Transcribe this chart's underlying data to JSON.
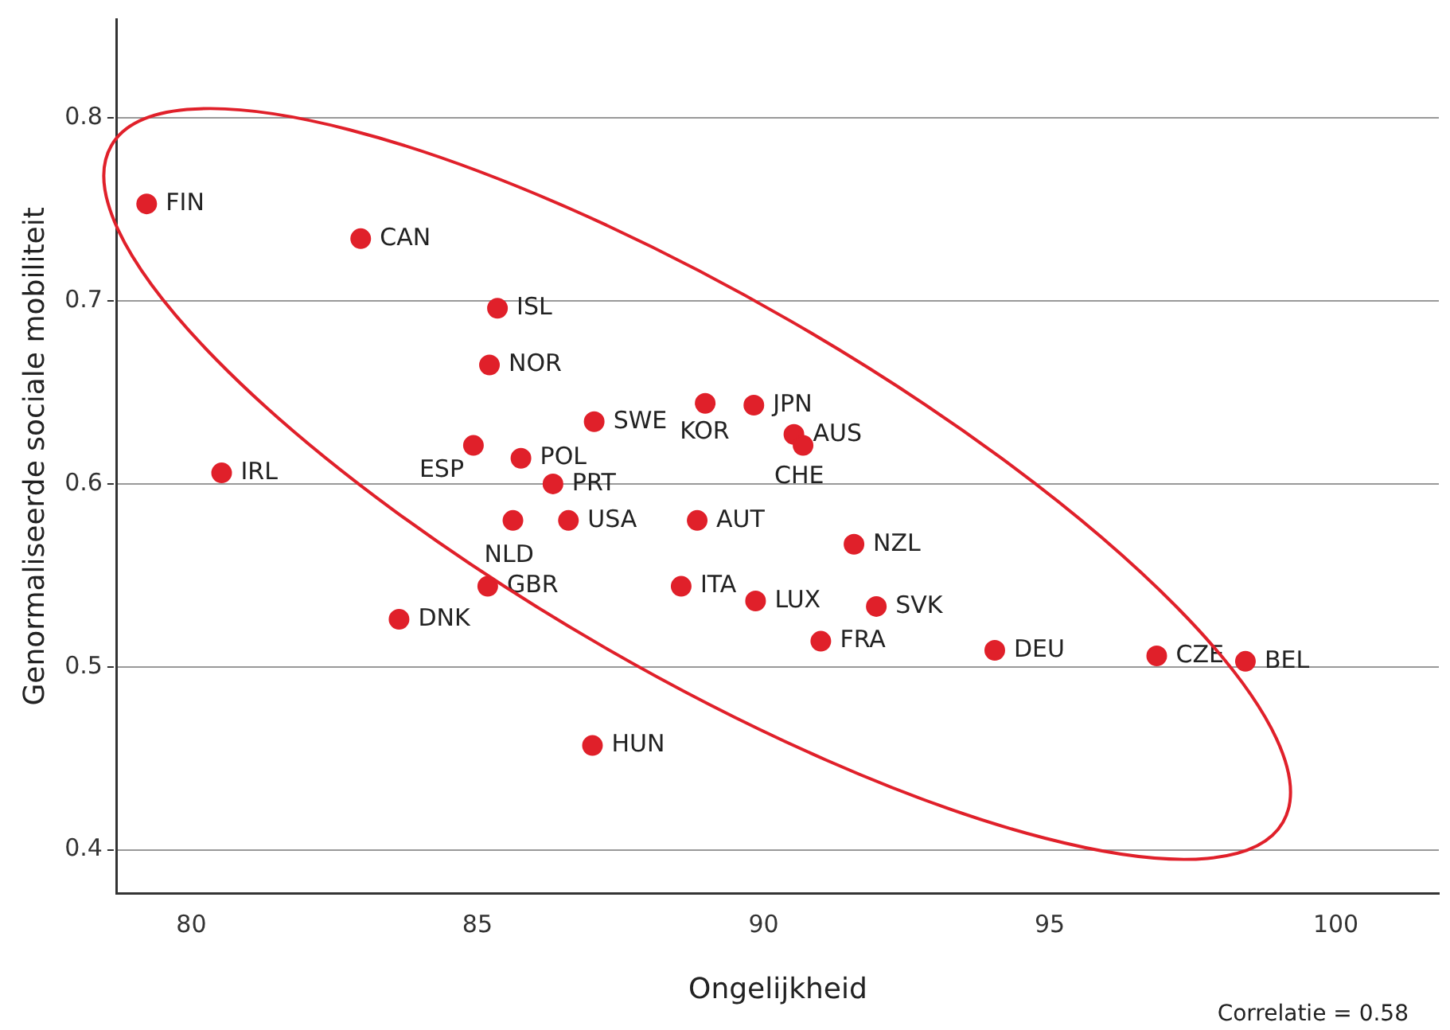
{
  "chart_data": {
    "type": "scatter",
    "xlabel": "Ongelijkheid",
    "ylabel": "Genormaliseerde sociale mobiliteit",
    "x": [
      79.22,
      82.96,
      85.35,
      85.21,
      87.04,
      84.93,
      85.76,
      86.32,
      88.98,
      89.83,
      90.53,
      90.69,
      80.53,
      85.62,
      86.59,
      88.84,
      91.58,
      88.56,
      85.18,
      89.86,
      91.97,
      83.63,
      91.0,
      94.04,
      96.87,
      98.42,
      87.01
    ],
    "values": [
      0.753,
      0.734,
      0.696,
      0.665,
      0.634,
      0.621,
      0.614,
      0.6,
      0.644,
      0.643,
      0.627,
      0.621,
      0.606,
      0.58,
      0.58,
      0.58,
      0.567,
      0.544,
      0.544,
      0.536,
      0.533,
      0.526,
      0.514,
      0.509,
      0.506,
      0.503,
      0.457
    ],
    "color": "#e0202a",
    "marker": "circle",
    "xlim": [
      78.7,
      101.8
    ],
    "xticks": [
      80,
      85,
      90,
      95,
      100
    ],
    "ylim": [
      0.376,
      0.854
    ],
    "yticks": [
      0.4,
      0.5,
      0.6,
      0.7,
      0.8
    ],
    "grid": "y",
    "legend": false,
    "annotations": [
      {
        "text": "FIN",
        "x": 79.22,
        "y": 0.753
      },
      {
        "text": "CAN",
        "x": 82.96,
        "y": 0.734
      },
      {
        "text": "ISL",
        "x": 85.35,
        "y": 0.696
      },
      {
        "text": "NOR",
        "x": 85.21,
        "y": 0.665
      },
      {
        "text": "SWE",
        "x": 87.04,
        "y": 0.634
      },
      {
        "text": "ESP",
        "x": 84.93,
        "y": 0.621
      },
      {
        "text": "POL",
        "x": 85.76,
        "y": 0.614
      },
      {
        "text": "PRT",
        "x": 86.32,
        "y": 0.6
      },
      {
        "text": "KOR",
        "x": 88.98,
        "y": 0.644
      },
      {
        "text": "JPN",
        "x": 89.83,
        "y": 0.643
      },
      {
        "text": "AUS",
        "x": 90.53,
        "y": 0.627
      },
      {
        "text": "CHE",
        "x": 90.69,
        "y": 0.621
      },
      {
        "text": "IRL",
        "x": 80.53,
        "y": 0.606
      },
      {
        "text": "NLD",
        "x": 85.62,
        "y": 0.58
      },
      {
        "text": "USA",
        "x": 86.59,
        "y": 0.58
      },
      {
        "text": "AUT",
        "x": 88.84,
        "y": 0.58
      },
      {
        "text": "NZL",
        "x": 91.58,
        "y": 0.567
      },
      {
        "text": "ITA",
        "x": 88.56,
        "y": 0.544
      },
      {
        "text": "GBR",
        "x": 85.18,
        "y": 0.544
      },
      {
        "text": "LUX",
        "x": 89.86,
        "y": 0.536
      },
      {
        "text": "SVK",
        "x": 91.97,
        "y": 0.533
      },
      {
        "text": "DNK",
        "x": 83.63,
        "y": 0.526
      },
      {
        "text": "FRA",
        "x": 91.0,
        "y": 0.514
      },
      {
        "text": "DEU",
        "x": 94.04,
        "y": 0.509
      },
      {
        "text": "CZE",
        "x": 96.87,
        "y": 0.506
      },
      {
        "text": "BEL",
        "x": 98.42,
        "y": 0.503
      },
      {
        "text": "HUN",
        "x": 87.01,
        "y": 0.457
      },
      "Correlatie = 0.58"
    ]
  }
}
